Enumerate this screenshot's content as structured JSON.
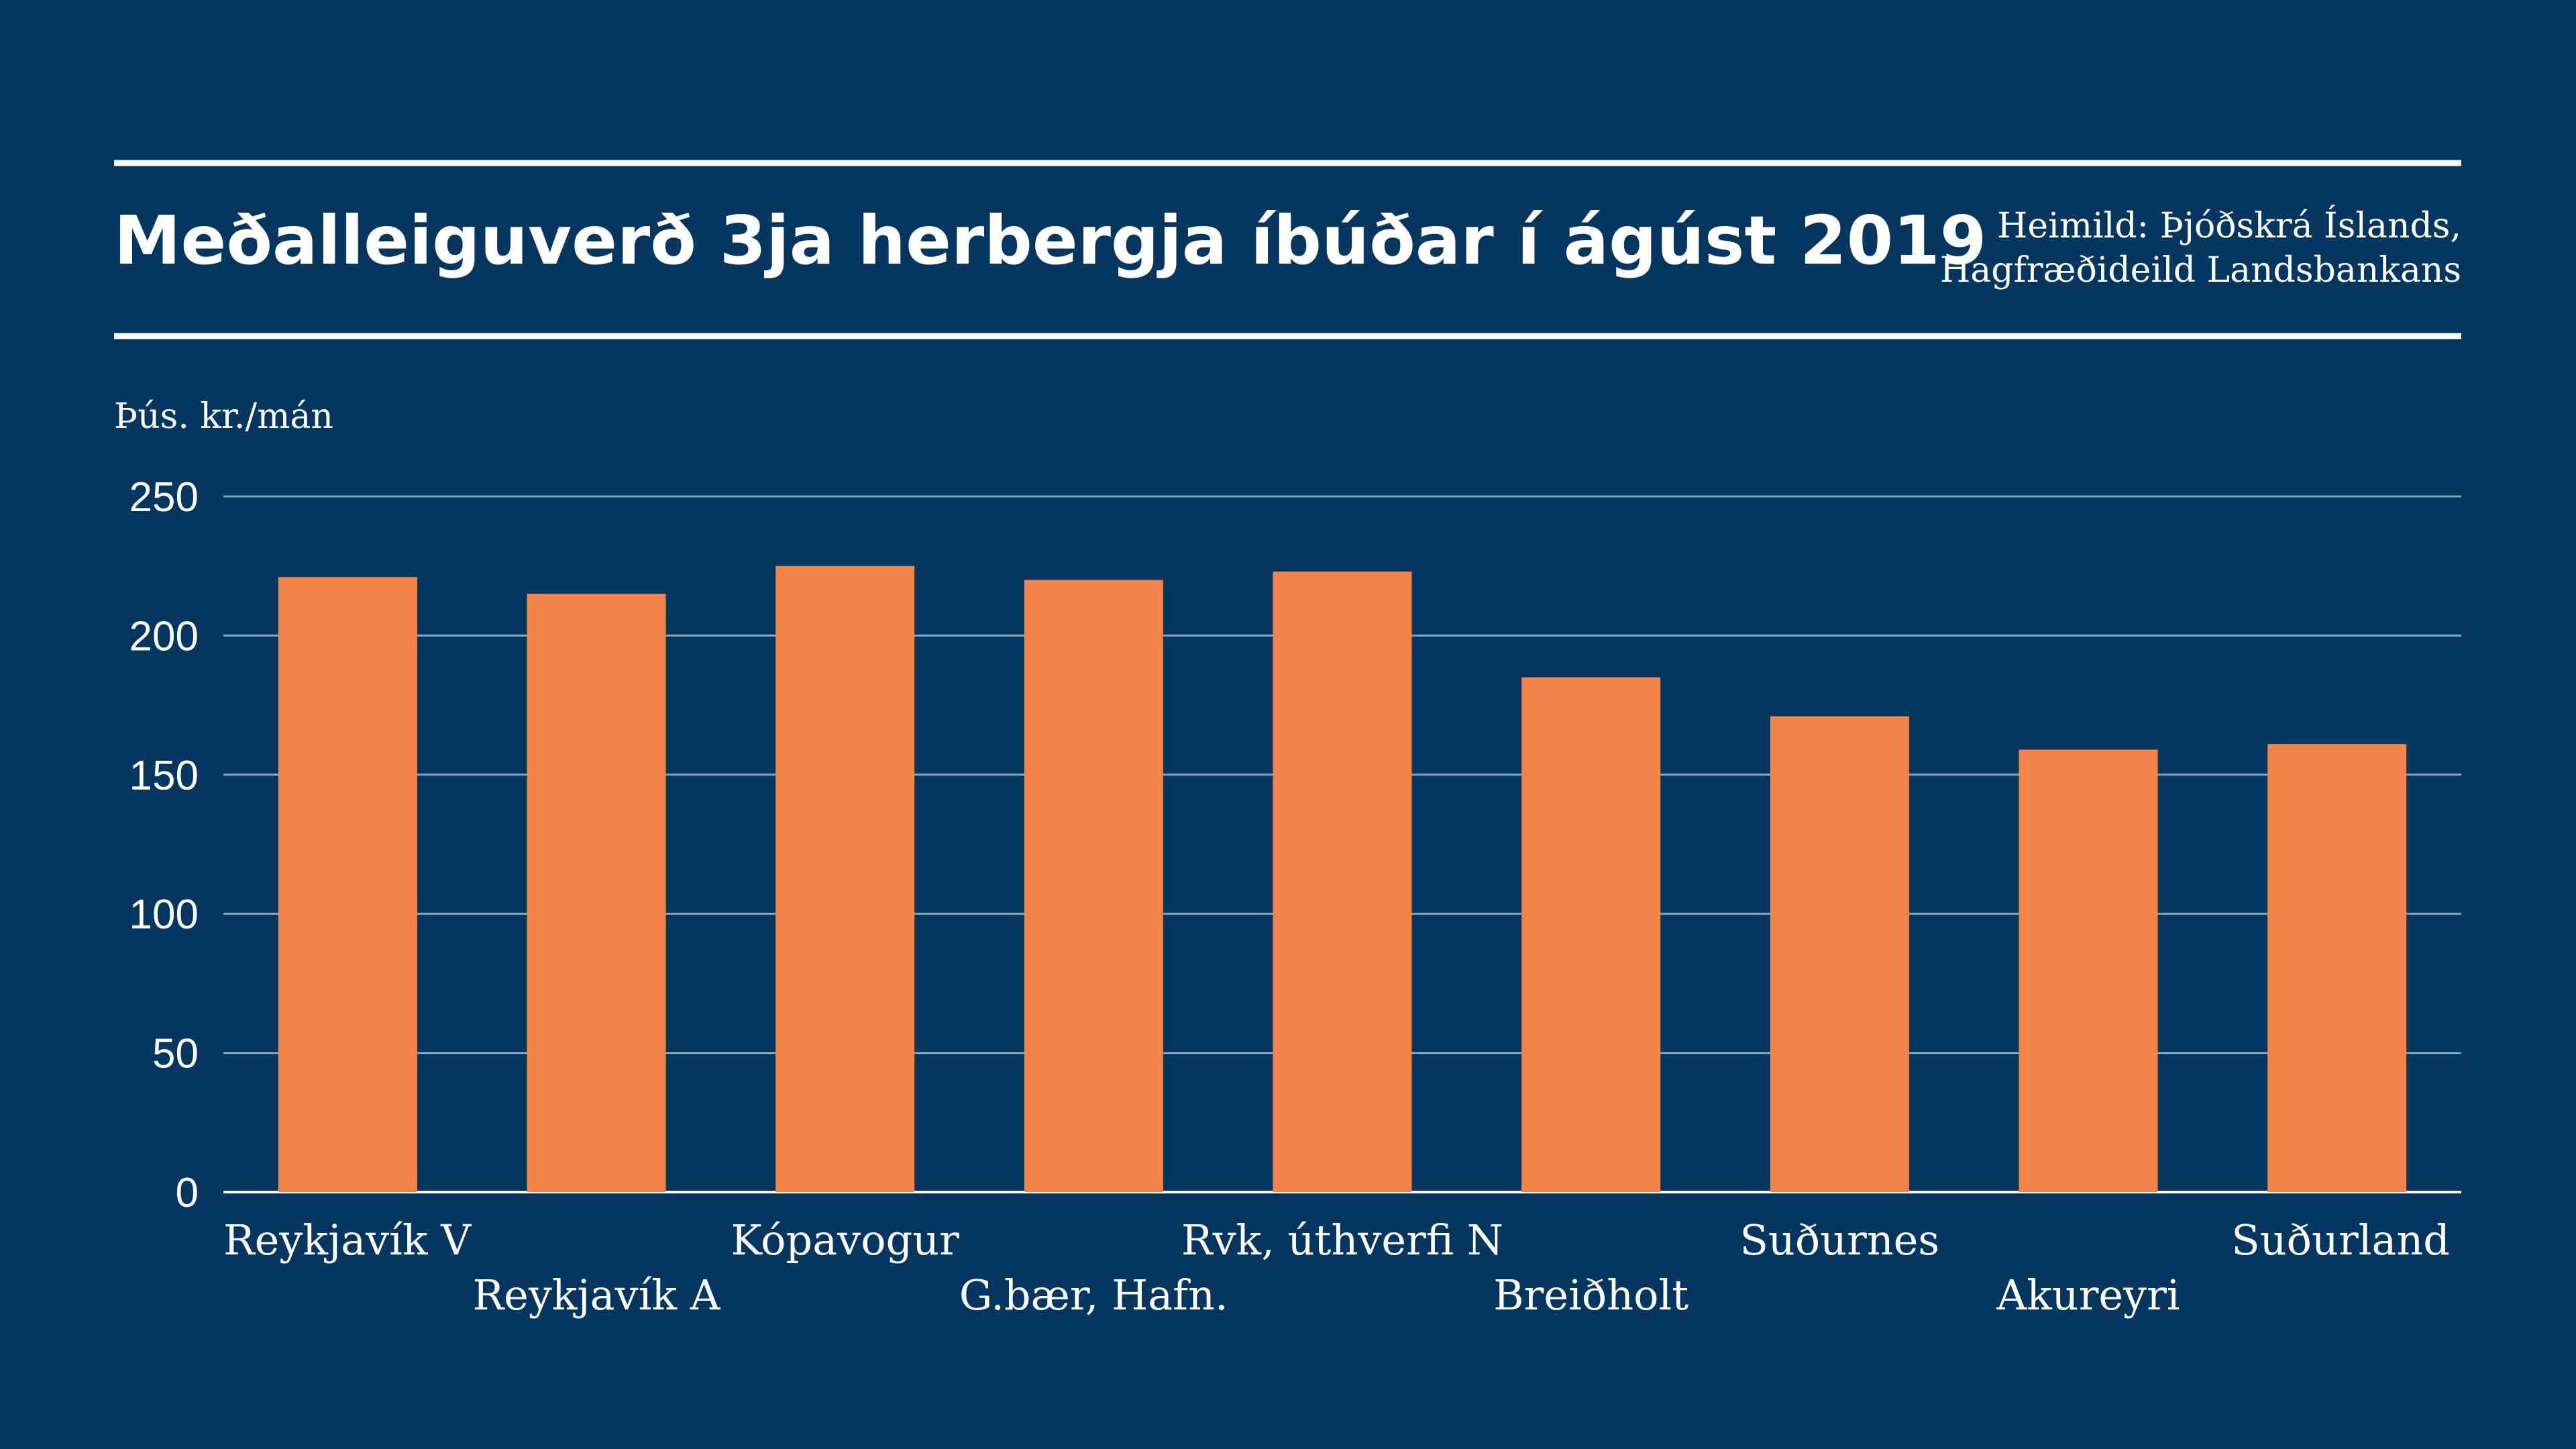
{
  "header": {
    "title": "Meðalleiguverð 3ja herbergja íbúðar í ágúst 2019",
    "source_line1": "Heimild: Þjóðskrá Íslands,",
    "source_line2": "Hagfræðideild Landsbankans"
  },
  "colors": {
    "background": "#05365f",
    "bar": "#f4844a",
    "text": "#ffffff",
    "grid": "#8aa3bb"
  },
  "chart_data": {
    "type": "bar",
    "ylabel": "Þús. kr./mán",
    "ylim": [
      0,
      250
    ],
    "yticks": [
      0,
      50,
      100,
      150,
      200,
      250
    ],
    "grid": true,
    "categories": [
      "Reykjavík V",
      "Reykjavík A",
      "Kópavogur",
      "G.bær, Hafn.",
      "Rvk, úthverfi N",
      "Breiðholt",
      "Suðurnes",
      "Akureyri",
      "Suðurland"
    ],
    "values": [
      221,
      215,
      225,
      220,
      223,
      185,
      171,
      159,
      161
    ]
  }
}
